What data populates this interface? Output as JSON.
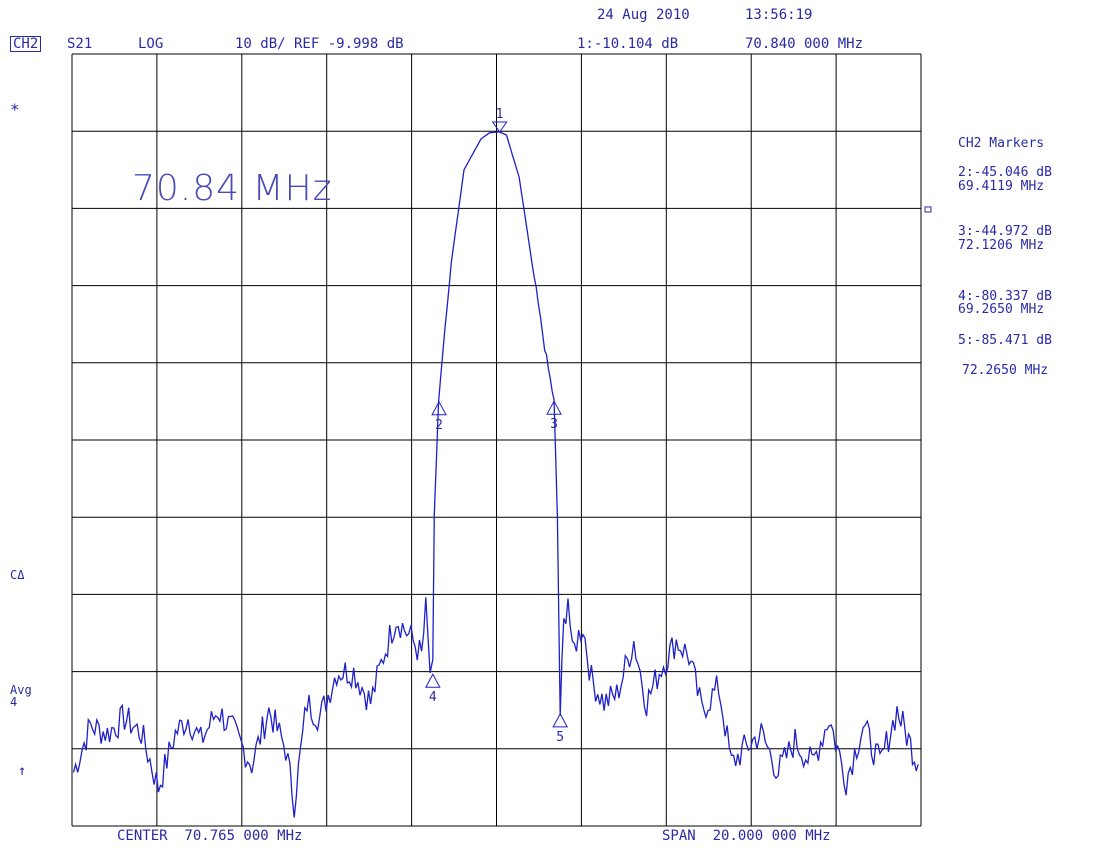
{
  "header": {
    "date": "24 Aug 2010",
    "time": "13:56:19",
    "channel": "CH2",
    "param": "S21",
    "format": "LOG",
    "scale_ref": "10 dB/ REF -9.998 dB",
    "marker1": "1:-10.104 dB",
    "marker1_freq": "70.840 000 MHz"
  },
  "left_labels": {
    "star": "*",
    "cdelta": "CΔ",
    "avg": "Avg",
    "avg_n": "4",
    "arrow": "↑"
  },
  "overlay": {
    "freq_text": "70.84 MHz"
  },
  "footer": {
    "center": "CENTER  70.765 000 MHz",
    "span": "SPAN  20.000 000 MHz"
  },
  "markers_panel": {
    "title": "CH2 Markers",
    "entries": [
      {
        "value": "2:-45.046 dB",
        "freq": "69.4119 MHz"
      },
      {
        "value": "3:-44.972 dB",
        "freq": "72.1206 MHz"
      },
      {
        "value": "4:-80.337 dB",
        "freq": "69.2650 MHz"
      },
      {
        "value": "5:-85.471 dB",
        "freq": "72.2650 MHz"
      }
    ]
  },
  "colors": {
    "trace": "#2020c8",
    "grid": "#000000",
    "text": "#2a2aa6"
  },
  "chart_data": {
    "type": "line",
    "xlim": [
      60.765,
      80.765
    ],
    "ylim": [
      -99.998,
      0.002
    ],
    "x_unit": "MHz",
    "y_unit": "dB",
    "grid": true,
    "series": [
      {
        "x": [
          60.8,
          61.2,
          61.6,
          62.0,
          62.4,
          62.8,
          63.2,
          63.5,
          63.8,
          64.2,
          64.6,
          65.0,
          65.4,
          65.8,
          66.0,
          66.3,
          66.6,
          67.0,
          67.4,
          67.8,
          68.1,
          68.4,
          68.8,
          69.0,
          69.1,
          69.2,
          69.265,
          69.3,
          69.4,
          69.7,
          70.0,
          70.4,
          70.6,
          70.8,
          70.84,
          71.0,
          71.3,
          71.6,
          71.9,
          72.12,
          72.2,
          72.265,
          72.35,
          72.45,
          72.55,
          72.65,
          72.8,
          73.0,
          73.3,
          73.6,
          74.0,
          74.3,
          74.6,
          75.0,
          75.3,
          75.6,
          76.0,
          76.3,
          76.6,
          77.0,
          77.4,
          77.8,
          78.2,
          78.6,
          79.0,
          79.4,
          79.8,
          80.2,
          80.7
        ],
        "y": [
          -93,
          -87,
          -88,
          -86,
          -88,
          -95,
          -88,
          -86,
          -89,
          -85,
          -88,
          -92,
          -85,
          -90,
          -97,
          -84,
          -86,
          -80,
          -80,
          -84,
          -78,
          -73,
          -76,
          -78,
          -72,
          -80,
          -80.3,
          -60,
          -45,
          -27,
          -15,
          -11,
          -10.2,
          -10.1,
          -10.1,
          -10.5,
          -16,
          -27,
          -38,
          -45,
          -60,
          -85.5,
          -74,
          -70,
          -78,
          -76,
          -74,
          -81,
          -84,
          -83,
          -76,
          -84,
          -80,
          -76,
          -78,
          -85,
          -82,
          -92,
          -90,
          -88,
          -93,
          -89,
          -92,
          -86,
          -94,
          -87,
          -92,
          -85,
          -92
        ]
      }
    ],
    "markers": [
      {
        "id": "1",
        "x": 70.84,
        "y": -10.104
      },
      {
        "id": "2",
        "x": 69.4119,
        "y": -45.046
      },
      {
        "id": "3",
        "x": 72.1206,
        "y": -44.972
      },
      {
        "id": "4",
        "x": 69.265,
        "y": -80.337
      },
      {
        "id": "5",
        "x": 72.265,
        "y": -85.471
      }
    ]
  }
}
